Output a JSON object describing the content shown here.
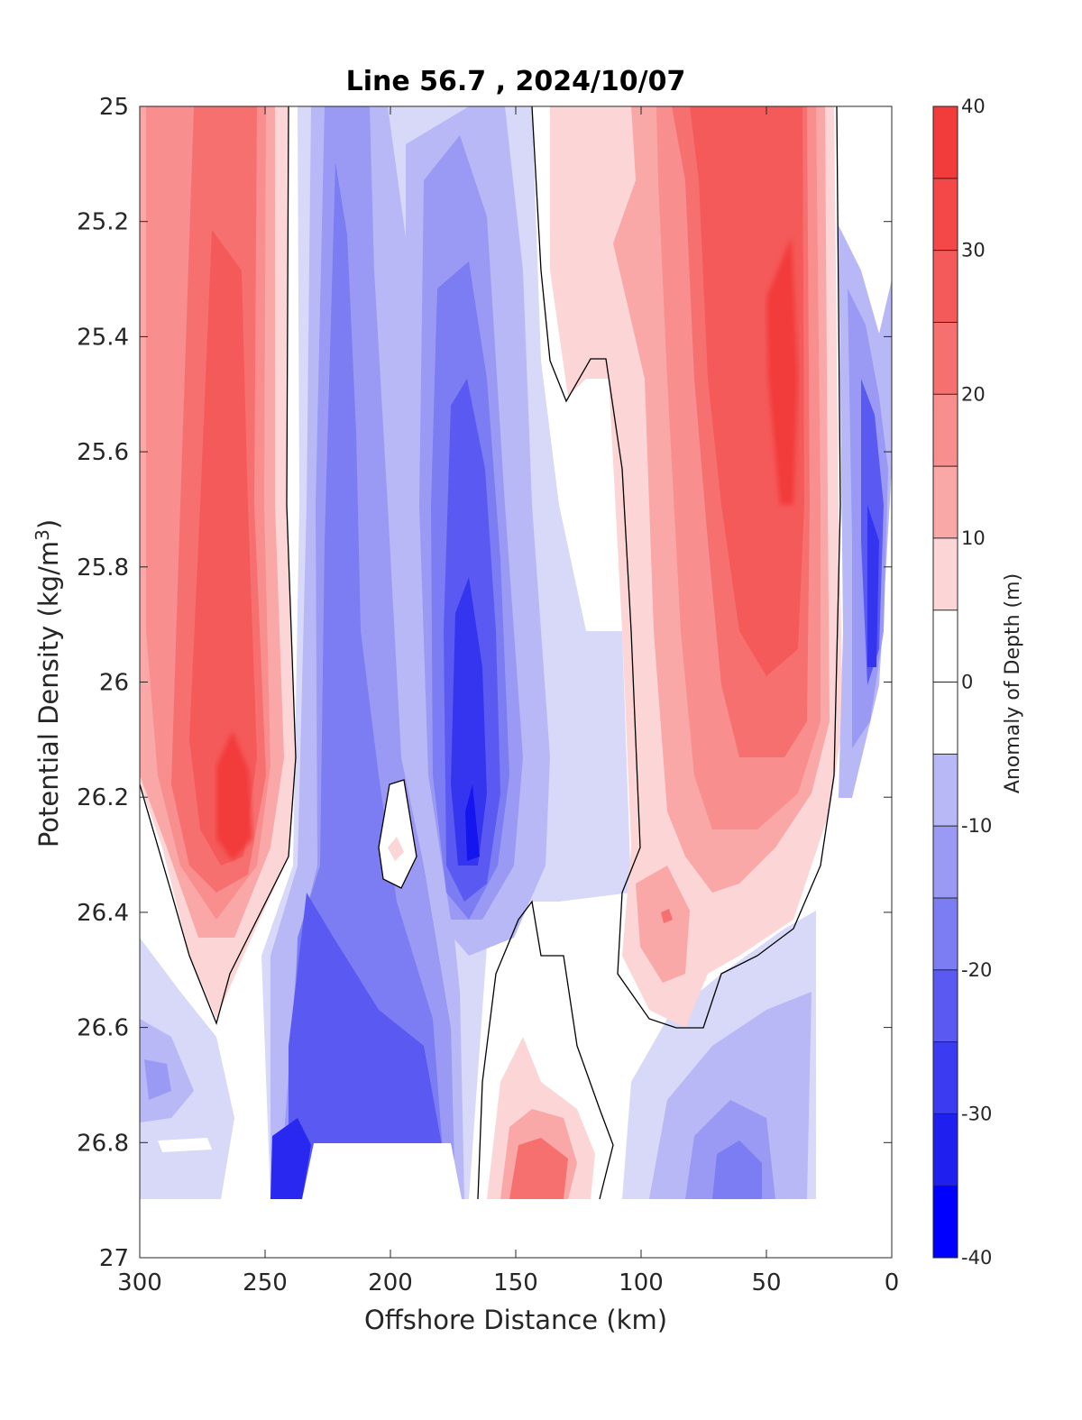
{
  "chart_data": {
    "type": "contourf",
    "title": "Line 56.7 , 2024/10/07",
    "xlabel": "Offshore Distance (km)",
    "ylabel_main": "Potential Density (kg/m",
    "ylabel_sup": "3",
    "ylabel_close": ")",
    "xlim": [
      300,
      0
    ],
    "ylim": [
      25,
      27
    ],
    "y_reversed": true,
    "x_reversed": true,
    "xticks": [
      300,
      250,
      200,
      150,
      100,
      50,
      0
    ],
    "yticks": [
      "25",
      "25.2",
      "25.4",
      "25.6",
      "25.8",
      "26",
      "26.2",
      "26.4",
      "26.6",
      "26.8",
      "27"
    ],
    "colorbar": {
      "label": "Anomaly of Depth (m)",
      "range": [
        -40,
        40
      ],
      "ticks": [
        "40",
        "30",
        "20",
        "10",
        "0",
        "-10",
        "-20",
        "-30",
        "-40"
      ],
      "colormap": "blue-white-red"
    },
    "features": [
      {
        "sign": "positive",
        "x_center": 265,
        "y_center": 26.2,
        "peak": 32
      },
      {
        "sign": "negative",
        "x_center": 170,
        "y_center": 26.2,
        "peak": -35
      },
      {
        "sign": "negative",
        "x_center": 225,
        "y_center": 26.7,
        "peak": -30
      },
      {
        "sign": "positive",
        "x_center": 45,
        "y_center": 25.5,
        "peak": 32
      },
      {
        "sign": "positive",
        "x_center": 140,
        "y_center": 26.85,
        "peak": 18
      },
      {
        "sign": "negative",
        "x_center": 10,
        "y_center": 25.8,
        "peak": -28
      }
    ]
  }
}
